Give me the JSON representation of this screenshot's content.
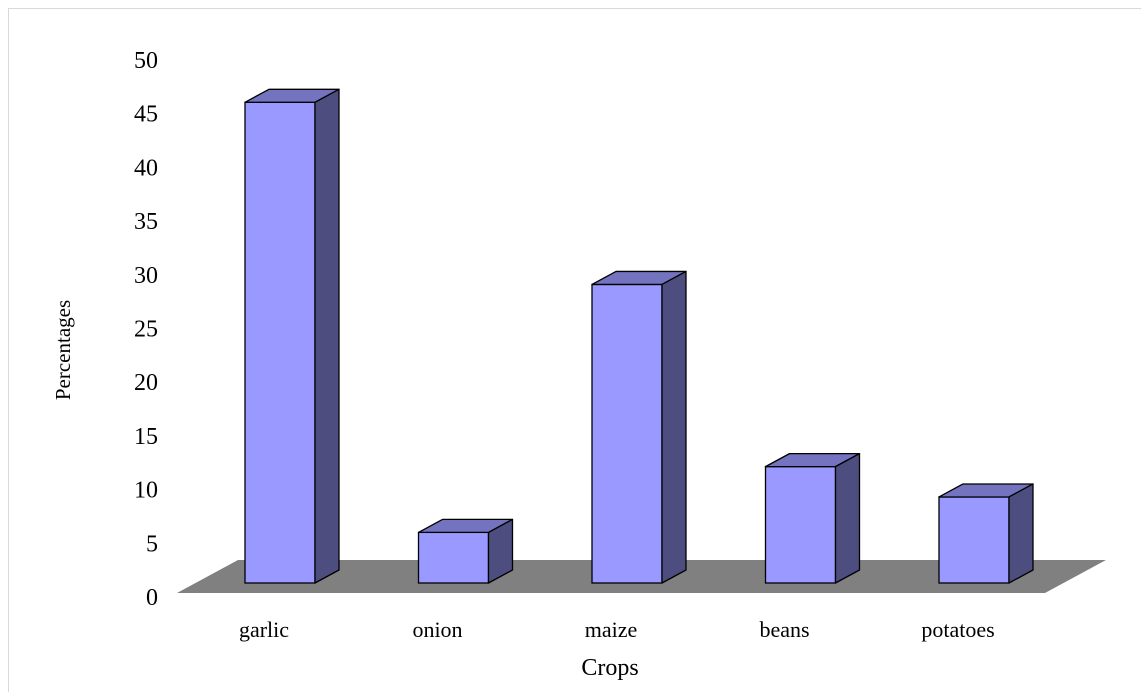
{
  "chart_data": {
    "type": "bar",
    "categories": [
      "garlic",
      "onion",
      "maize",
      "beans",
      "potatoes"
    ],
    "values": [
      47.5,
      5,
      29.5,
      11.5,
      8.5
    ],
    "xlabel": "Crops",
    "ylabel": "Percentages",
    "ylim": [
      0,
      50
    ],
    "yticks": [
      0,
      5,
      10,
      15,
      20,
      25,
      30,
      35,
      40,
      45,
      50
    ],
    "colors": {
      "bar_front": "#9999ff",
      "bar_top": "#7373bf",
      "bar_side": "#4d4d80",
      "floor": "#808080"
    },
    "grid": false,
    "legend": "none"
  }
}
